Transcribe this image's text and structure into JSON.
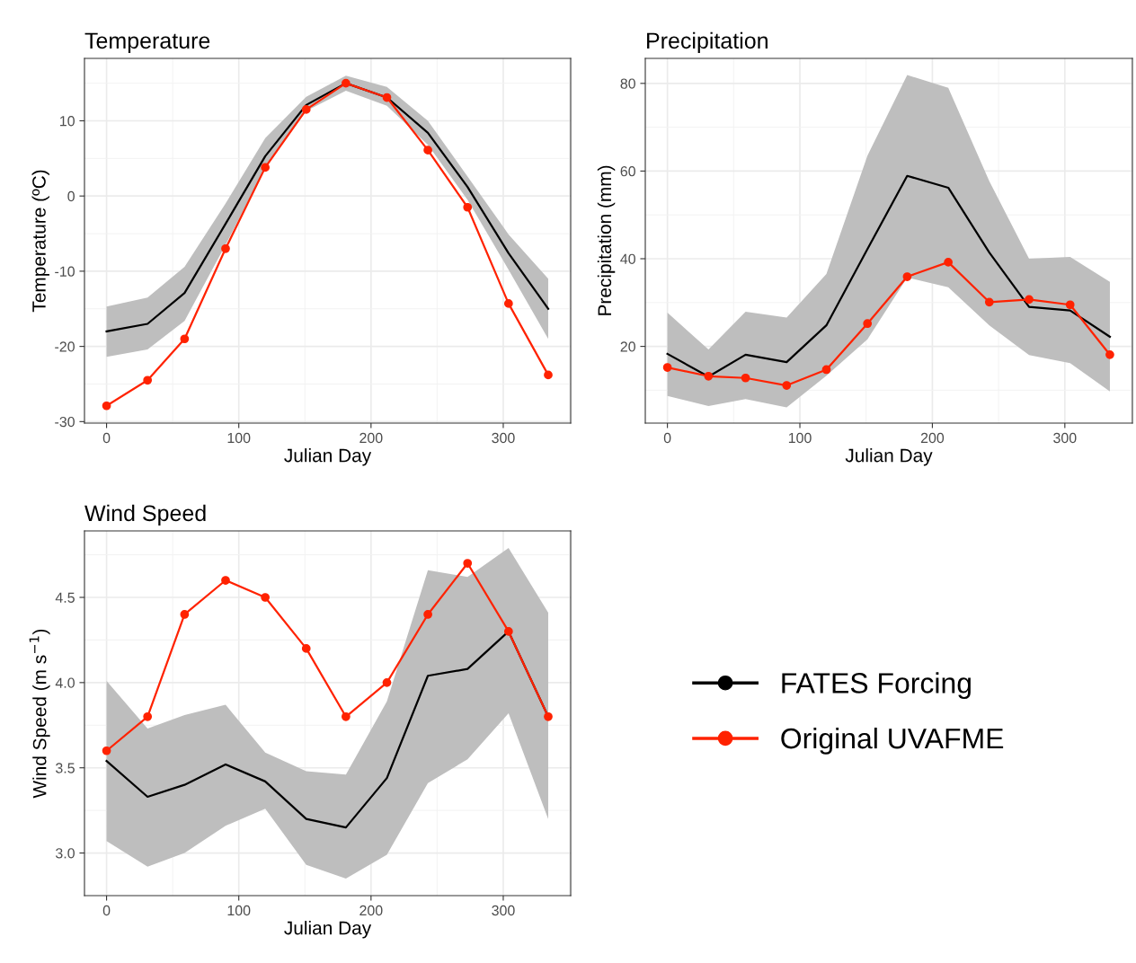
{
  "chart_data": [
    {
      "type": "line",
      "title": "Temperature",
      "xlabel": "Julian Day",
      "ylabel": "Temperature (ºC)",
      "x": [
        0,
        31,
        59,
        90,
        120,
        151,
        181,
        212,
        243,
        273,
        304,
        334
      ],
      "xlim": [
        -16.7,
        351
      ],
      "xticks": [
        0,
        100,
        200,
        300
      ],
      "ylim": [
        -30.2,
        18.3
      ],
      "yticks": [
        -30,
        -20,
        -10,
        0,
        10
      ],
      "grid": true,
      "series": [
        {
          "color": "#000000",
          "marker": "none",
          "values": [
            -18.0,
            -17.0,
            -12.9,
            -3.7,
            5.3,
            12.1,
            15.0,
            13.1,
            8.4,
            1.2,
            -7.6,
            -15.0
          ],
          "lower": [
            -21.4,
            -20.4,
            -16.6,
            -6.5,
            3.8,
            11.3,
            14.0,
            12.0,
            6.8,
            -0.5,
            -9.8,
            -19.0
          ],
          "upper": [
            -14.7,
            -13.5,
            -9.4,
            -1.0,
            7.7,
            13.2,
            16.0,
            14.5,
            10.0,
            2.6,
            -5.1,
            -11.0
          ]
        },
        {
          "color": "#ff2200",
          "marker": "circle",
          "values": [
            -27.9,
            -24.5,
            -19.0,
            -7.0,
            3.8,
            11.5,
            15.0,
            13.1,
            6.1,
            -1.5,
            -14.3,
            -23.8
          ]
        }
      ]
    },
    {
      "type": "line",
      "title": "Precipitation",
      "xlabel": "Julian Day",
      "ylabel": "Precipitation (mm)",
      "x": [
        0,
        31,
        59,
        90,
        120,
        151,
        181,
        212,
        243,
        273,
        304,
        334
      ],
      "xlim": [
        -16.7,
        351
      ],
      "xticks": [
        0,
        100,
        200,
        300
      ],
      "ylim": [
        2.5,
        85.7
      ],
      "yticks": [
        20,
        40,
        60,
        80
      ],
      "grid": true,
      "series": [
        {
          "color": "#000000",
          "marker": "none",
          "values": [
            18.3,
            13.1,
            18.1,
            16.4,
            24.8,
            42.2,
            58.9,
            56.2,
            41.4,
            29.0,
            28.2,
            22.2
          ],
          "lower": [
            8.7,
            6.4,
            8.0,
            6.1,
            13.3,
            21.6,
            35.7,
            33.5,
            24.8,
            18.0,
            16.2,
            9.7
          ],
          "upper": [
            27.7,
            19.3,
            27.9,
            26.6,
            36.5,
            63.5,
            81.9,
            79.0,
            57.7,
            40.0,
            40.4,
            34.7
          ]
        },
        {
          "color": "#ff2200",
          "marker": "circle",
          "values": [
            15.2,
            13.2,
            12.8,
            11.1,
            14.7,
            25.2,
            35.9,
            39.2,
            30.1,
            30.7,
            29.5,
            18.1
          ]
        }
      ]
    },
    {
      "type": "line",
      "title": "Wind Speed",
      "xlabel": "Julian Day",
      "ylabel": "Wind Speed (m s$^{−1}$)",
      "x": [
        0,
        31,
        59,
        90,
        120,
        151,
        181,
        212,
        243,
        273,
        304,
        334
      ],
      "xlim": [
        -16.7,
        351
      ],
      "xticks": [
        0,
        100,
        200,
        300
      ],
      "ylim": [
        2.75,
        4.89
      ],
      "yticks": [
        {
          "value": 3,
          "label": "3.0"
        },
        3.5,
        {
          "value": 4,
          "label": "4.0"
        },
        4.5
      ],
      "grid": true,
      "legend": "right",
      "series": [
        {
          "name": "FATES Forcing",
          "color": "#000000",
          "marker": "none",
          "values": [
            3.54,
            3.33,
            3.4,
            3.52,
            3.42,
            3.2,
            3.15,
            3.44,
            4.04,
            4.08,
            4.3,
            3.8
          ],
          "lower": [
            3.07,
            2.92,
            3.0,
            3.16,
            3.26,
            2.93,
            2.85,
            2.99,
            3.41,
            3.55,
            3.82,
            3.2
          ],
          "upper": [
            4.01,
            3.73,
            3.81,
            3.87,
            3.59,
            3.48,
            3.46,
            3.89,
            4.66,
            4.62,
            4.79,
            4.41
          ]
        },
        {
          "name": "Original UVAFME",
          "color": "#ff2200",
          "marker": "circle",
          "values": [
            3.6,
            3.8,
            4.4,
            4.6,
            4.5,
            4.2,
            3.8,
            4.0,
            4.4,
            4.7,
            4.3,
            3.8
          ]
        }
      ]
    }
  ]
}
